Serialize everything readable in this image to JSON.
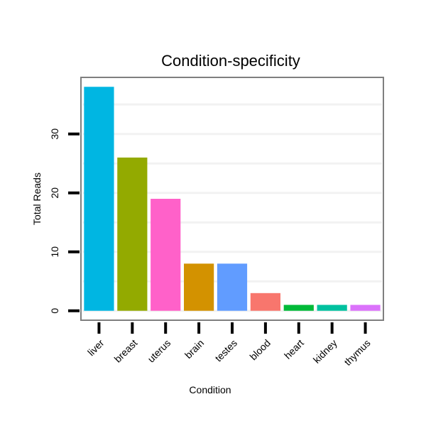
{
  "chart_data": {
    "type": "bar",
    "title": "Condition-specificity",
    "xlabel": "Condition",
    "ylabel": "Total Reads",
    "categories": [
      "liver",
      "breast",
      "uterus",
      "brain",
      "testes",
      "blood",
      "heart",
      "kidney",
      "thymus"
    ],
    "values": [
      38,
      26,
      19,
      8,
      8,
      3,
      1,
      1,
      1
    ],
    "colors": [
      "#00B6E2",
      "#93AA00",
      "#FF61C9",
      "#D39200",
      "#619CFF",
      "#F8766D",
      "#00BA38",
      "#00C19F",
      "#DB72FB"
    ],
    "yticks": [
      0,
      10,
      20,
      30
    ],
    "ylim": [
      -1.6,
      39.6
    ],
    "grid": true,
    "legend": "none"
  }
}
